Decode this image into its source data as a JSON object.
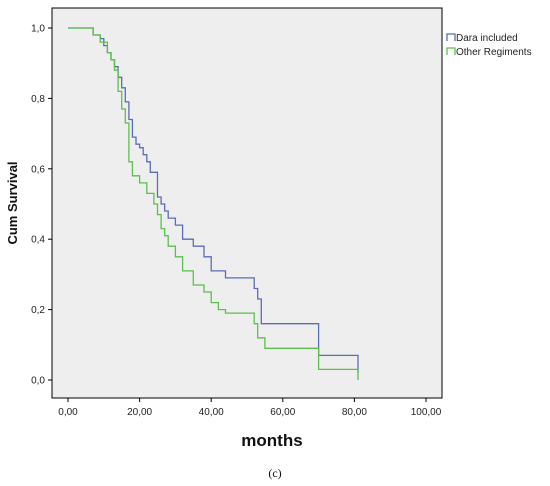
{
  "chart_data": {
    "type": "line",
    "title": "",
    "xlabel": "months",
    "ylabel": "Cum Survival",
    "xlim": [
      0,
      100
    ],
    "ylim": [
      0,
      1
    ],
    "x_ticks": [
      "0,00",
      "20,00",
      "40,00",
      "60,00",
      "80,00",
      "100,00"
    ],
    "y_ticks": [
      "0,0",
      "0,2",
      "0,4",
      "0,6",
      "0,8",
      "1,0"
    ],
    "grid": false,
    "legend_position": "top-right",
    "colors": {
      "background": "#eeeeee",
      "frame": "#000000"
    },
    "series": [
      {
        "name": "Dara included",
        "color": "#5a6db5",
        "step": true,
        "x": [
          0,
          7,
          9,
          10,
          11,
          12,
          13,
          14,
          15,
          16,
          17,
          18,
          19,
          20,
          21,
          22,
          23,
          25,
          26,
          27,
          28,
          30,
          32,
          35,
          38,
          40,
          44,
          50,
          52,
          53,
          54,
          60,
          70,
          81
        ],
        "y": [
          1.0,
          0.98,
          0.97,
          0.95,
          0.93,
          0.91,
          0.89,
          0.86,
          0.83,
          0.79,
          0.74,
          0.69,
          0.67,
          0.66,
          0.64,
          0.62,
          0.59,
          0.52,
          0.5,
          0.48,
          0.46,
          0.44,
          0.4,
          0.38,
          0.35,
          0.31,
          0.29,
          0.29,
          0.26,
          0.23,
          0.16,
          0.16,
          0.07,
          0.02
        ]
      },
      {
        "name": "Other Regiments",
        "color": "#5cbf4e",
        "step": true,
        "x": [
          0,
          7,
          9,
          11,
          12,
          13,
          14,
          15,
          16,
          17,
          18,
          20,
          22,
          24,
          25,
          26,
          27,
          28,
          30,
          32,
          35,
          38,
          40,
          42,
          44,
          52,
          53,
          55,
          60,
          70,
          81
        ],
        "y": [
          1.0,
          0.98,
          0.96,
          0.93,
          0.91,
          0.88,
          0.82,
          0.77,
          0.73,
          0.62,
          0.58,
          0.56,
          0.53,
          0.5,
          0.47,
          0.43,
          0.41,
          0.38,
          0.35,
          0.31,
          0.27,
          0.25,
          0.22,
          0.2,
          0.19,
          0.16,
          0.12,
          0.09,
          0.09,
          0.03,
          0.0
        ]
      }
    ],
    "caption": "(c)"
  }
}
